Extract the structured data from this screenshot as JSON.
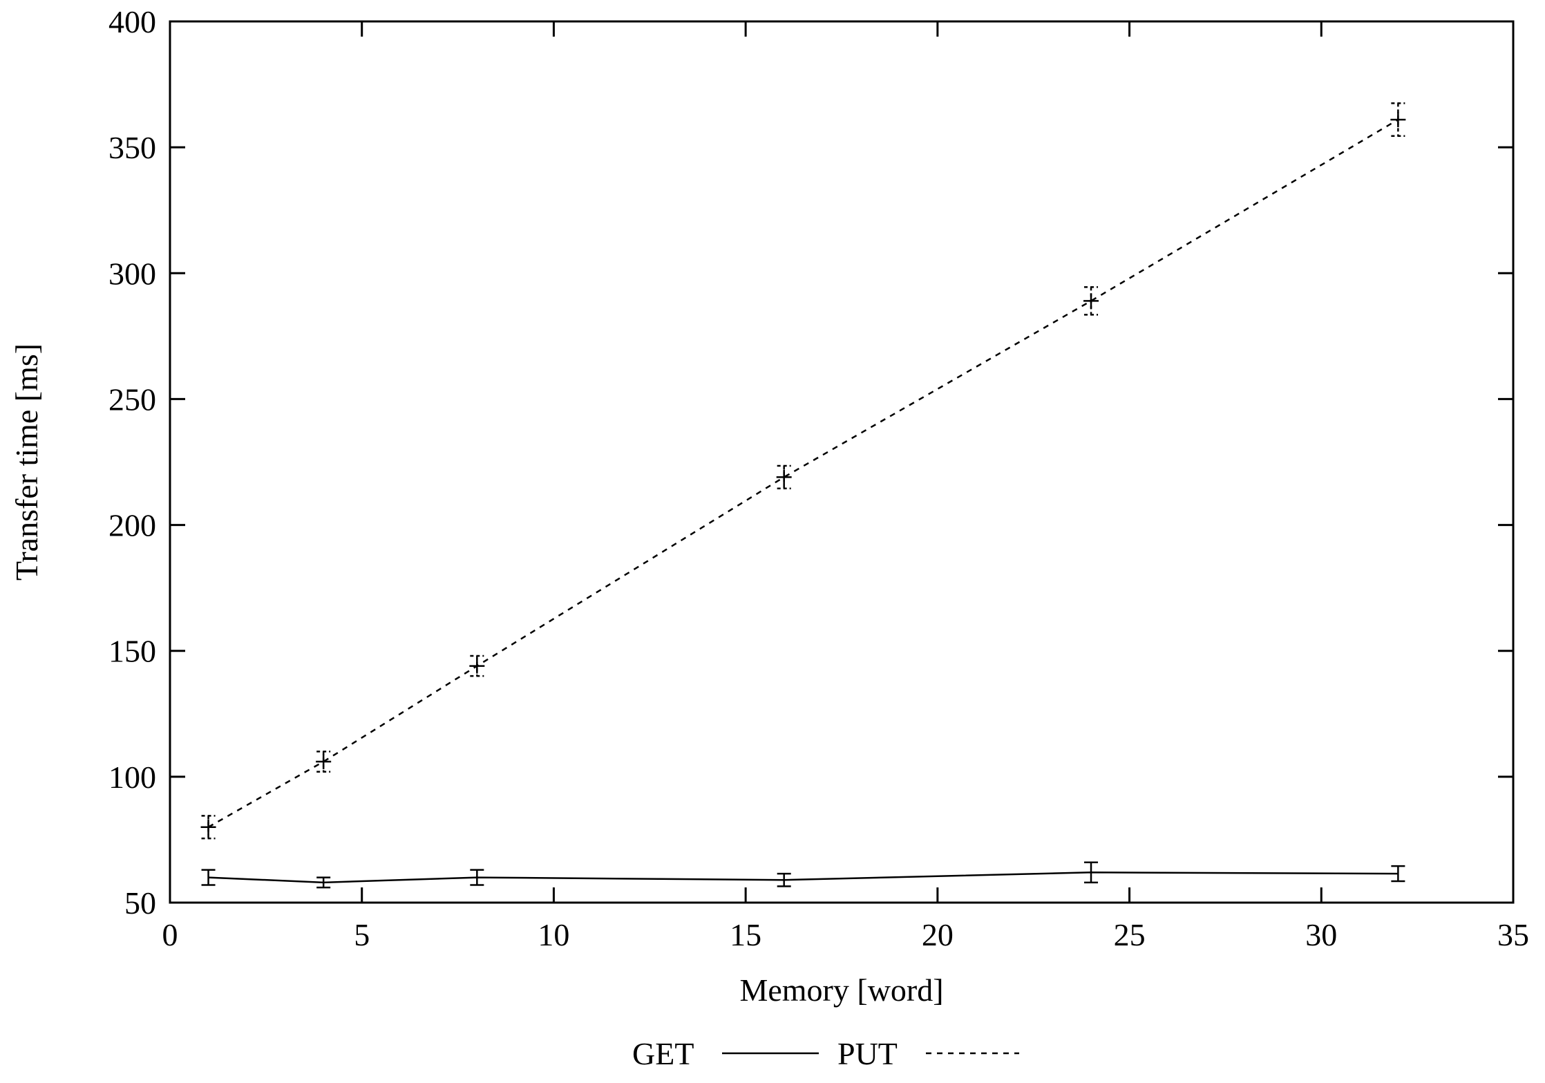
{
  "chart_data": {
    "type": "line",
    "title": "",
    "xlabel": "Memory [word]",
    "ylabel": "Transfer time [ms]",
    "xlim": [
      0,
      35
    ],
    "ylim": [
      50,
      400
    ],
    "xticks": [
      0,
      5,
      10,
      15,
      20,
      25,
      30,
      35
    ],
    "yticks": [
      50,
      100,
      150,
      200,
      250,
      300,
      350,
      400
    ],
    "xtick_labels": [
      "0",
      "5",
      "10",
      "15",
      "20",
      "25",
      "30",
      "35"
    ],
    "ytick_labels": [
      "50",
      "100",
      "150",
      "200",
      "250",
      "300",
      "350",
      "400"
    ],
    "grid": false,
    "legend_position": "bottom-center",
    "series": [
      {
        "name": "GET",
        "line_style": "solid",
        "color": "#000000",
        "x": [
          1,
          4,
          8,
          16,
          24,
          32
        ],
        "y": [
          60,
          58,
          60,
          59,
          62,
          61.5
        ],
        "y_err": [
          3,
          2,
          3,
          2.5,
          4,
          3
        ]
      },
      {
        "name": "PUT",
        "line_style": "dashed",
        "color": "#000000",
        "x": [
          1,
          4,
          8,
          16,
          24,
          32
        ],
        "y": [
          80,
          106,
          144,
          219,
          289,
          361
        ],
        "y_err": [
          4.5,
          4,
          4,
          4.5,
          5.5,
          6.5
        ]
      }
    ]
  }
}
